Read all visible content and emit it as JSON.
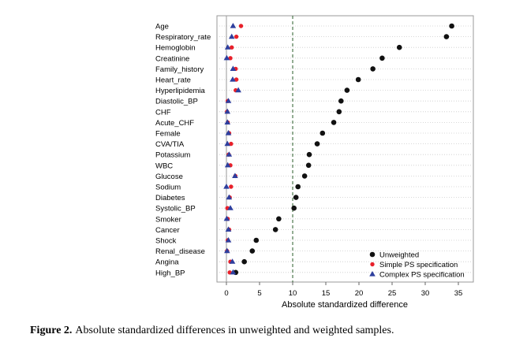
{
  "chart_data": {
    "type": "scatter",
    "xlabel": "Absolute standardized difference",
    "xlim": [
      -1,
      36
    ],
    "xticks": [
      0,
      5,
      10,
      15,
      20,
      25,
      30,
      35
    ],
    "reference_line": 10,
    "grid": true,
    "legend": "bottom-right",
    "categories": [
      "Age",
      "Respiratory_rate",
      "Hemoglobin",
      "Creatinine",
      "Family_history",
      "Heart_rate",
      "Hyperlipidemia",
      "Diastolic_BP",
      "CHF",
      "Acute_CHF",
      "Female",
      "CVA/TIA",
      "Potassium",
      "WBC",
      "Glucose",
      "Sodium",
      "Diabetes",
      "Systolic_BP",
      "Smoker",
      "Cancer",
      "Shock",
      "Renal_disease",
      "Angina",
      "High_BP"
    ],
    "series": [
      {
        "name": "Unweighted",
        "color": "#111111",
        "marker": "circle",
        "values": [
          34.0,
          33.2,
          26.1,
          23.5,
          22.1,
          19.9,
          18.2,
          17.3,
          17.0,
          16.2,
          14.5,
          13.7,
          12.5,
          12.4,
          11.8,
          10.8,
          10.5,
          10.2,
          7.9,
          7.4,
          4.5,
          3.9,
          2.7,
          1.4
        ]
      },
      {
        "name": "Simple PS specification",
        "color": "#e8202a",
        "marker": "circle",
        "values": [
          2.2,
          1.5,
          0.8,
          0.6,
          1.4,
          1.5,
          1.4,
          0.2,
          0.1,
          0.2,
          0.4,
          0.7,
          0.35,
          0.6,
          1.35,
          0.7,
          0.5,
          0.15,
          0.2,
          0.4,
          0.2,
          0.1,
          0.6,
          0.5
        ]
      },
      {
        "name": "Complex PS specification",
        "color": "#2e3f9e",
        "marker": "triangle",
        "values": [
          1.0,
          0.8,
          0.2,
          0.05,
          1.0,
          0.95,
          1.8,
          0.3,
          0.15,
          0.15,
          0.3,
          0.15,
          0.4,
          0.2,
          1.3,
          0.0,
          0.4,
          0.6,
          0.05,
          0.3,
          0.3,
          0.1,
          0.9,
          1.0
        ]
      }
    ]
  },
  "caption": {
    "label": "Figure 2.",
    "text": "Absolute standardized differences in unweighted and weighted samples."
  }
}
